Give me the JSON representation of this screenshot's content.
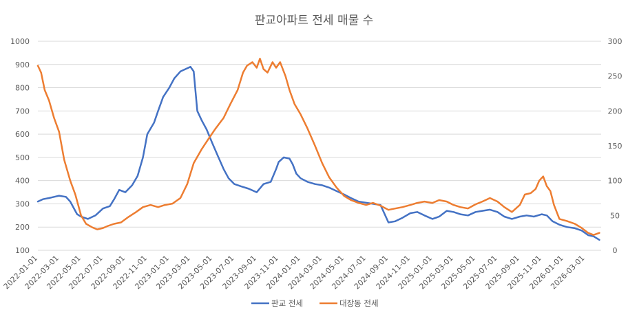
{
  "chart_data": {
    "type": "line",
    "title": "판교아파트 전세 매물 수",
    "xlabel": "",
    "ylabel": "",
    "x_ticks": [
      "2022-01-01",
      "2022-03-01",
      "2022-05-01",
      "2022-07-01",
      "2022-09-01",
      "2022-11-01",
      "2023-01-01",
      "2023-03-01",
      "2023-05-01",
      "2023-07-01",
      "2023-09-01",
      "2023-11-01",
      "2024-01-01",
      "2024-03-01",
      "2024-05-01",
      "2024-07-01",
      "2024-09-01",
      "2024-11-01",
      "2025-01-01",
      "2025-03-01",
      "2025-05-01",
      "2025-07-01",
      "2025-09-01",
      "2025-11-01",
      "2026-01-01",
      "2026-03-01"
    ],
    "x_range": [
      "2022-01-01",
      "2026-04-15"
    ],
    "y_left": {
      "min": 100,
      "max": 1000,
      "step": 100,
      "ticks": [
        "100",
        "200",
        "300",
        "400",
        "500",
        "600",
        "700",
        "800",
        "900",
        "1000"
      ]
    },
    "y_right": {
      "min": 0,
      "max": 300,
      "step": 50,
      "ticks": [
        "0",
        "50",
        "100",
        "150",
        "200",
        "250",
        "300"
      ]
    },
    "grid": true,
    "legend_position": "bottom",
    "series": [
      {
        "name": "판교 전세",
        "color": "#4472C4",
        "axis": "left",
        "points": [
          [
            "2022-01-01",
            310
          ],
          [
            "2022-01-15",
            320
          ],
          [
            "2022-02-01",
            325
          ],
          [
            "2022-02-15",
            330
          ],
          [
            "2022-03-01",
            335
          ],
          [
            "2022-03-20",
            330
          ],
          [
            "2022-04-01",
            310
          ],
          [
            "2022-04-20",
            255
          ],
          [
            "2022-05-01",
            245
          ],
          [
            "2022-05-20",
            235
          ],
          [
            "2022-06-10",
            250
          ],
          [
            "2022-07-01",
            280
          ],
          [
            "2022-07-20",
            290
          ],
          [
            "2022-08-01",
            320
          ],
          [
            "2022-08-15",
            360
          ],
          [
            "2022-09-01",
            350
          ],
          [
            "2022-09-20",
            380
          ],
          [
            "2022-10-05",
            420
          ],
          [
            "2022-10-20",
            500
          ],
          [
            "2022-11-01",
            600
          ],
          [
            "2022-11-20",
            650
          ],
          [
            "2022-12-01",
            700
          ],
          [
            "2022-12-15",
            760
          ],
          [
            "2023-01-01",
            800
          ],
          [
            "2023-01-15",
            840
          ],
          [
            "2023-02-01",
            870
          ],
          [
            "2023-02-15",
            880
          ],
          [
            "2023-03-01",
            890
          ],
          [
            "2023-03-10",
            870
          ],
          [
            "2023-03-20",
            700
          ],
          [
            "2023-04-01",
            660
          ],
          [
            "2023-04-15",
            620
          ],
          [
            "2023-05-01",
            560
          ],
          [
            "2023-05-15",
            510
          ],
          [
            "2023-06-01",
            450
          ],
          [
            "2023-06-15",
            410
          ],
          [
            "2023-07-01",
            385
          ],
          [
            "2023-07-20",
            375
          ],
          [
            "2023-08-10",
            365
          ],
          [
            "2023-09-01",
            350
          ],
          [
            "2023-09-20",
            385
          ],
          [
            "2023-10-10",
            395
          ],
          [
            "2023-10-25",
            450
          ],
          [
            "2023-11-01",
            480
          ],
          [
            "2023-11-15",
            500
          ],
          [
            "2023-12-01",
            495
          ],
          [
            "2023-12-10",
            470
          ],
          [
            "2023-12-20",
            430
          ],
          [
            "2024-01-01",
            410
          ],
          [
            "2024-01-20",
            395
          ],
          [
            "2024-02-10",
            385
          ],
          [
            "2024-03-01",
            380
          ],
          [
            "2024-03-20",
            370
          ],
          [
            "2024-04-10",
            355
          ],
          [
            "2024-05-01",
            340
          ],
          [
            "2024-05-20",
            325
          ],
          [
            "2024-06-10",
            310
          ],
          [
            "2024-07-01",
            305
          ],
          [
            "2024-07-20",
            300
          ],
          [
            "2024-08-10",
            295
          ],
          [
            "2024-09-01",
            220
          ],
          [
            "2024-09-20",
            225
          ],
          [
            "2024-10-10",
            240
          ],
          [
            "2024-11-01",
            260
          ],
          [
            "2024-11-20",
            265
          ],
          [
            "2024-12-10",
            250
          ],
          [
            "2025-01-01",
            235
          ],
          [
            "2025-01-20",
            245
          ],
          [
            "2025-02-10",
            270
          ],
          [
            "2025-03-01",
            265
          ],
          [
            "2025-03-20",
            255
          ],
          [
            "2025-04-10",
            250
          ],
          [
            "2025-05-01",
            265
          ],
          [
            "2025-05-20",
            270
          ],
          [
            "2025-06-10",
            275
          ],
          [
            "2025-07-01",
            265
          ],
          [
            "2025-07-20",
            245
          ],
          [
            "2025-08-10",
            235
          ],
          [
            "2025-09-01",
            245
          ],
          [
            "2025-09-20",
            250
          ],
          [
            "2025-10-10",
            245
          ],
          [
            "2025-11-01",
            255
          ],
          [
            "2025-11-15",
            250
          ],
          [
            "2025-12-01",
            225
          ],
          [
            "2025-12-20",
            210
          ],
          [
            "2026-01-10",
            200
          ],
          [
            "2026-02-01",
            195
          ],
          [
            "2026-02-20",
            185
          ],
          [
            "2026-03-10",
            165
          ],
          [
            "2026-03-25",
            160
          ],
          [
            "2026-04-10",
            145
          ]
        ]
      },
      {
        "name": "대장동 전세",
        "color": "#ED7D31",
        "axis": "right",
        "points": [
          [
            "2022-01-01",
            265
          ],
          [
            "2022-01-10",
            255
          ],
          [
            "2022-01-20",
            230
          ],
          [
            "2022-02-01",
            215
          ],
          [
            "2022-02-15",
            190
          ],
          [
            "2022-03-01",
            170
          ],
          [
            "2022-03-15",
            130
          ],
          [
            "2022-04-01",
            100
          ],
          [
            "2022-04-15",
            80
          ],
          [
            "2022-05-01",
            50
          ],
          [
            "2022-05-15",
            38
          ],
          [
            "2022-06-01",
            33
          ],
          [
            "2022-06-15",
            30
          ],
          [
            "2022-07-01",
            32
          ],
          [
            "2022-07-15",
            35
          ],
          [
            "2022-08-01",
            38
          ],
          [
            "2022-08-20",
            40
          ],
          [
            "2022-09-10",
            48
          ],
          [
            "2022-10-01",
            55
          ],
          [
            "2022-10-20",
            62
          ],
          [
            "2022-11-10",
            65
          ],
          [
            "2022-12-01",
            62
          ],
          [
            "2022-12-20",
            65
          ],
          [
            "2023-01-10",
            67
          ],
          [
            "2023-02-01",
            75
          ],
          [
            "2023-02-20",
            95
          ],
          [
            "2023-03-10",
            125
          ],
          [
            "2023-04-01",
            145
          ],
          [
            "2023-04-20",
            160
          ],
          [
            "2023-05-10",
            175
          ],
          [
            "2023-06-01",
            190
          ],
          [
            "2023-06-20",
            210
          ],
          [
            "2023-07-10",
            230
          ],
          [
            "2023-07-25",
            255
          ],
          [
            "2023-08-05",
            265
          ],
          [
            "2023-08-20",
            270
          ],
          [
            "2023-09-01",
            262
          ],
          [
            "2023-09-10",
            275
          ],
          [
            "2023-09-20",
            260
          ],
          [
            "2023-10-01",
            255
          ],
          [
            "2023-10-15",
            270
          ],
          [
            "2023-10-25",
            262
          ],
          [
            "2023-11-05",
            270
          ],
          [
            "2023-11-20",
            250
          ],
          [
            "2023-12-01",
            230
          ],
          [
            "2023-12-15",
            210
          ],
          [
            "2024-01-01",
            195
          ],
          [
            "2024-01-20",
            175
          ],
          [
            "2024-02-10",
            150
          ],
          [
            "2024-03-01",
            125
          ],
          [
            "2024-03-20",
            105
          ],
          [
            "2024-04-10",
            90
          ],
          [
            "2024-05-01",
            78
          ],
          [
            "2024-05-20",
            72
          ],
          [
            "2024-06-10",
            68
          ],
          [
            "2024-07-01",
            65
          ],
          [
            "2024-07-20",
            68
          ],
          [
            "2024-08-10",
            64
          ],
          [
            "2024-09-01",
            58
          ],
          [
            "2024-09-20",
            60
          ],
          [
            "2024-10-10",
            62
          ],
          [
            "2024-11-01",
            65
          ],
          [
            "2024-11-20",
            68
          ],
          [
            "2024-12-10",
            70
          ],
          [
            "2025-01-01",
            68
          ],
          [
            "2025-01-20",
            72
          ],
          [
            "2025-02-10",
            70
          ],
          [
            "2025-03-01",
            65
          ],
          [
            "2025-03-20",
            62
          ],
          [
            "2025-04-10",
            60
          ],
          [
            "2025-05-01",
            66
          ],
          [
            "2025-05-20",
            70
          ],
          [
            "2025-06-10",
            75
          ],
          [
            "2025-07-01",
            70
          ],
          [
            "2025-07-20",
            62
          ],
          [
            "2025-08-10",
            55
          ],
          [
            "2025-09-01",
            65
          ],
          [
            "2025-09-15",
            80
          ],
          [
            "2025-10-01",
            82
          ],
          [
            "2025-10-15",
            88
          ],
          [
            "2025-10-25",
            100
          ],
          [
            "2025-11-05",
            106
          ],
          [
            "2025-11-15",
            92
          ],
          [
            "2025-11-25",
            85
          ],
          [
            "2025-12-05",
            65
          ],
          [
            "2025-12-20",
            45
          ],
          [
            "2026-01-10",
            42
          ],
          [
            "2026-02-01",
            38
          ],
          [
            "2026-02-20",
            32
          ],
          [
            "2026-03-10",
            25
          ],
          [
            "2026-03-25",
            22
          ],
          [
            "2026-04-10",
            25
          ]
        ]
      }
    ]
  }
}
